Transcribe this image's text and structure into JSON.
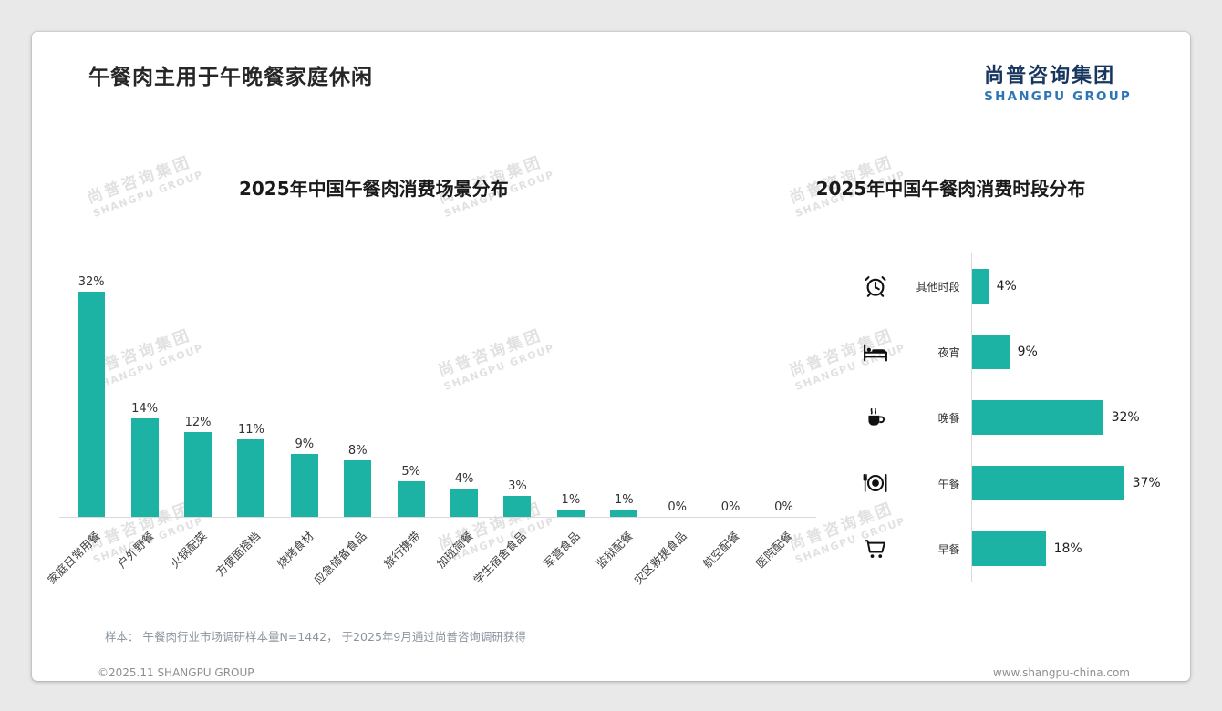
{
  "page": {
    "title": "午餐肉主用于午晚餐家庭休闲",
    "logo": {
      "cn": "尚普咨询集团",
      "en": "SHANGPU GROUP"
    },
    "watermark": {
      "cn": "尚普咨询集团",
      "en": "SHANGPU GROUP"
    },
    "sample_note": "样本： 午餐肉行业市场调研样本量N=1442， 于2025年9月通过尚普咨询调研获得",
    "footer": {
      "left": "©2025.11 SHANGPU GROUP",
      "right": "www.shangpu-china.com"
    }
  },
  "colors": {
    "bar": "#1cb3a4",
    "axis": "#d9d9d9",
    "logo_cn": "#17365d",
    "logo_en": "#2e75b6",
    "watermark": "#dcdcdc"
  },
  "chart_data": [
    {
      "type": "bar",
      "orientation": "vertical",
      "title": "2025年中国午餐肉消费场景分布",
      "categories": [
        "家庭日常用餐",
        "户外野餐",
        "火锅配菜",
        "方便面搭档",
        "烧烤食材",
        "应急储备食品",
        "旅行携带",
        "加班简餐",
        "学生宿舍食品",
        "军营食品",
        "监狱配餐",
        "灾区救援食品",
        "航空配餐",
        "医院配餐"
      ],
      "values": [
        32,
        14,
        12,
        11,
        9,
        8,
        5,
        4,
        3,
        1,
        1,
        0,
        0,
        0
      ],
      "unit": "%",
      "ylim": [
        0,
        35
      ],
      "value_labels": true,
      "grid": false
    },
    {
      "type": "bar",
      "orientation": "horizontal",
      "title": "2025年中国午餐肉消费时段分布",
      "row_order": "top-to-bottom",
      "categories": [
        "其他时段",
        "夜宵",
        "晚餐",
        "午餐",
        "早餐"
      ],
      "values": [
        4,
        9,
        32,
        37,
        18
      ],
      "icons": [
        "alarm-clock",
        "bed",
        "coffee-cup",
        "plate-cutlery",
        "shopping-cart"
      ],
      "unit": "%",
      "xlim": [
        0,
        40
      ],
      "value_labels": true,
      "grid": false
    }
  ]
}
